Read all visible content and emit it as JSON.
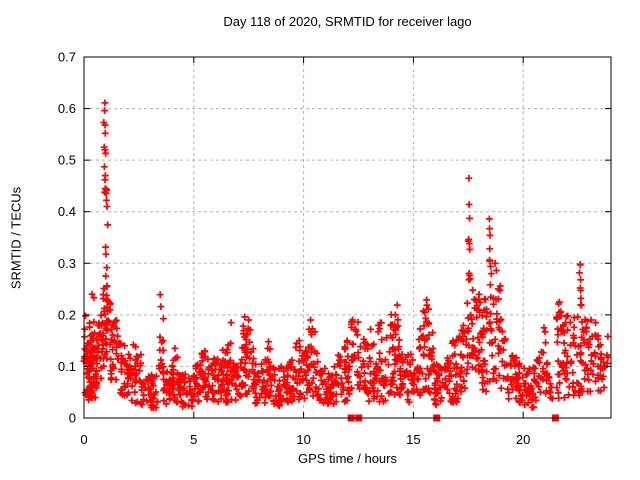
{
  "chart_data": {
    "type": "scatter",
    "title": "Day 118 of 2020, SRMTID for receiver lago",
    "xlabel": "GPS time / hours",
    "ylabel": "SRMTID / TECUs",
    "xlim": [
      0,
      24
    ],
    "ylim": [
      0,
      0.7
    ],
    "xticks": {
      "values": [
        0,
        5,
        10,
        15,
        20
      ],
      "labels": [
        "0",
        "5",
        "10",
        "15",
        "20"
      ]
    },
    "yticks": {
      "values": [
        0,
        0.1,
        0.2,
        0.3,
        0.4,
        0.5,
        0.6,
        0.7
      ],
      "labels": [
        "0",
        "0.1",
        "0.2",
        "0.3",
        "0.4",
        "0.5",
        "0.6",
        "0.7"
      ]
    },
    "grid": {
      "show": true,
      "color": "#b3b3b3",
      "dash": "3,3"
    },
    "axis_color": "#000000",
    "text_color": "#000000",
    "legend": "none",
    "render_seed": 42,
    "series": [
      {
        "name": "srmtid",
        "marker": "plus",
        "color": "#ff0000",
        "feature_points": [
          [
            0.07,
            0.198
          ],
          [
            0.37,
            0.24
          ],
          [
            0.45,
            0.233
          ],
          [
            0.95,
            0.611
          ],
          [
            0.94,
            0.596
          ],
          [
            0.9,
            0.573
          ],
          [
            0.96,
            0.568
          ],
          [
            0.97,
            0.552
          ],
          [
            0.92,
            0.525
          ],
          [
            0.95,
            0.52
          ],
          [
            0.99,
            0.513
          ],
          [
            0.93,
            0.487
          ],
          [
            0.97,
            0.47
          ],
          [
            2.25,
            0.142
          ],
          [
            2.35,
            0.138
          ],
          [
            3.47,
            0.239
          ],
          [
            3.5,
            0.216
          ],
          [
            5.5,
            0.13
          ],
          [
            6.7,
            0.185
          ],
          [
            7.32,
            0.196
          ],
          [
            7.5,
            0.19
          ],
          [
            7.25,
            0.178
          ],
          [
            8.4,
            0.148
          ],
          [
            9.8,
            0.15
          ],
          [
            10.32,
            0.19
          ],
          [
            10.25,
            0.172
          ],
          [
            12.23,
            0.19
          ],
          [
            12.48,
            0.186
          ],
          [
            13.05,
            0.172
          ],
          [
            13.5,
            0.185
          ],
          [
            14.27,
            0.219
          ],
          [
            14.18,
            0.2
          ],
          [
            15.6,
            0.229
          ],
          [
            15.52,
            0.205
          ],
          [
            17.53,
            0.465
          ],
          [
            17.54,
            0.414
          ],
          [
            17.56,
            0.387
          ],
          [
            17.5,
            0.343
          ],
          [
            17.55,
            0.338
          ],
          [
            17.57,
            0.327
          ],
          [
            18.46,
            0.386
          ],
          [
            18.47,
            0.367
          ],
          [
            18.49,
            0.354
          ],
          [
            18.48,
            0.328
          ],
          [
            18.72,
            0.3
          ],
          [
            18.78,
            0.286
          ],
          [
            20.95,
            0.175
          ],
          [
            21.0,
            0.167
          ],
          [
            21.02,
            0.146
          ],
          [
            21.65,
            0.225
          ],
          [
            22.6,
            0.298
          ],
          [
            22.62,
            0.268
          ],
          [
            22.6,
            0.252
          ],
          [
            22.63,
            0.232
          ],
          [
            23.3,
            0.185
          ]
        ],
        "density_boxes": [
          [
            0.0,
            0.15,
            0.04,
            0.19,
            14
          ],
          [
            0.1,
            0.6,
            0.05,
            0.145,
            55
          ],
          [
            0.15,
            0.55,
            0.03,
            0.06,
            10
          ],
          [
            0.2,
            0.55,
            0.145,
            0.19,
            10
          ],
          [
            0.55,
            0.85,
            0.07,
            0.2,
            26
          ],
          [
            0.85,
            1.2,
            0.1,
            0.26,
            40
          ],
          [
            0.9,
            1.1,
            0.26,
            0.47,
            14
          ],
          [
            1.2,
            1.6,
            0.07,
            0.2,
            28
          ],
          [
            1.6,
            2.1,
            0.04,
            0.145,
            32
          ],
          [
            2.1,
            2.6,
            0.025,
            0.125,
            32
          ],
          [
            2.6,
            3.35,
            0.02,
            0.085,
            45
          ],
          [
            3.38,
            3.62,
            0.05,
            0.21,
            16
          ],
          [
            3.62,
            4.35,
            0.025,
            0.095,
            42
          ],
          [
            4.0,
            4.35,
            0.095,
            0.135,
            6
          ],
          [
            4.35,
            5.05,
            0.02,
            0.085,
            42
          ],
          [
            5.05,
            5.75,
            0.03,
            0.105,
            42
          ],
          [
            5.25,
            5.65,
            0.105,
            0.135,
            7
          ],
          [
            5.75,
            6.35,
            0.03,
            0.115,
            40
          ],
          [
            6.2,
            6.9,
            0.1,
            0.155,
            12
          ],
          [
            6.35,
            7.05,
            0.03,
            0.1,
            40
          ],
          [
            7.05,
            7.75,
            0.04,
            0.145,
            40
          ],
          [
            7.15,
            7.65,
            0.145,
            0.195,
            10
          ],
          [
            7.75,
            8.55,
            0.025,
            0.105,
            45
          ],
          [
            8.25,
            8.55,
            0.105,
            0.145,
            6
          ],
          [
            8.55,
            9.3,
            0.02,
            0.1,
            45
          ],
          [
            9.3,
            10.05,
            0.03,
            0.115,
            42
          ],
          [
            9.65,
            9.95,
            0.115,
            0.145,
            5
          ],
          [
            10.05,
            10.65,
            0.04,
            0.135,
            35
          ],
          [
            10.15,
            10.55,
            0.135,
            0.175,
            7
          ],
          [
            10.65,
            11.45,
            0.025,
            0.1,
            45
          ],
          [
            11.45,
            12.1,
            0.03,
            0.125,
            38
          ],
          [
            11.85,
            12.1,
            0.125,
            0.165,
            5
          ],
          [
            12.15,
            12.4,
            0.05,
            0.19,
            14
          ],
          [
            12.42,
            12.65,
            0.05,
            0.185,
            12
          ],
          [
            12.7,
            13.2,
            0.03,
            0.155,
            30
          ],
          [
            13.2,
            13.75,
            0.03,
            0.115,
            32
          ],
          [
            13.4,
            13.6,
            0.115,
            0.185,
            6
          ],
          [
            13.75,
            14.4,
            0.04,
            0.175,
            40
          ],
          [
            13.95,
            14.35,
            0.175,
            0.215,
            8
          ],
          [
            14.4,
            15.0,
            0.03,
            0.125,
            35
          ],
          [
            15.0,
            15.25,
            0.03,
            0.1,
            14
          ],
          [
            15.25,
            15.9,
            0.04,
            0.18,
            40
          ],
          [
            15.45,
            15.7,
            0.18,
            0.225,
            7
          ],
          [
            15.9,
            16.4,
            0.025,
            0.105,
            30
          ],
          [
            16.4,
            17.05,
            0.025,
            0.125,
            38
          ],
          [
            16.75,
            17.05,
            0.125,
            0.155,
            6
          ],
          [
            17.05,
            17.45,
            0.05,
            0.18,
            25
          ],
          [
            17.45,
            18.1,
            0.09,
            0.25,
            45
          ],
          [
            17.48,
            17.6,
            0.26,
            0.35,
            5
          ],
          [
            18.1,
            18.8,
            0.05,
            0.235,
            48
          ],
          [
            18.42,
            18.55,
            0.25,
            0.33,
            5
          ],
          [
            18.8,
            19.0,
            0.08,
            0.26,
            14
          ],
          [
            19.0,
            19.25,
            0.05,
            0.17,
            12
          ],
          [
            19.25,
            19.95,
            0.03,
            0.125,
            40
          ],
          [
            19.95,
            20.6,
            0.02,
            0.1,
            38
          ],
          [
            20.6,
            21.1,
            0.04,
            0.135,
            22
          ],
          [
            21.1,
            21.35,
            0.03,
            0.09,
            8
          ],
          [
            21.5,
            22.3,
            0.03,
            0.21,
            55
          ],
          [
            21.6,
            21.75,
            0.19,
            0.225,
            4
          ],
          [
            22.3,
            23.15,
            0.04,
            0.2,
            50
          ],
          [
            22.55,
            22.7,
            0.21,
            0.3,
            5
          ],
          [
            23.15,
            23.9,
            0.05,
            0.165,
            35
          ]
        ]
      },
      {
        "name": "zero-level-flags",
        "marker": "filled-square",
        "color": "#ff0000",
        "points": [
          [
            12.17,
            0
          ],
          [
            12.51,
            0
          ],
          [
            16.06,
            0
          ],
          [
            21.47,
            0
          ]
        ]
      }
    ]
  }
}
